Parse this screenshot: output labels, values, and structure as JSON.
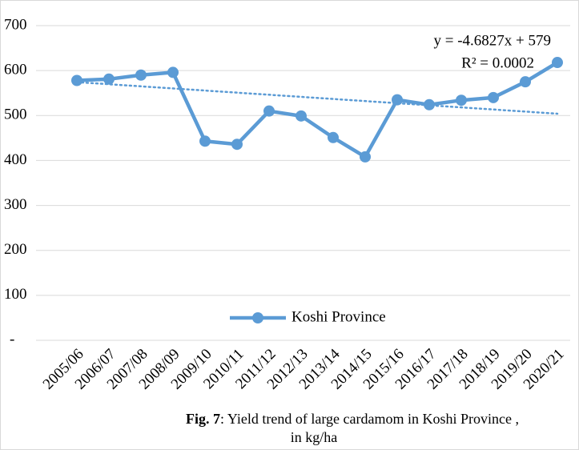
{
  "chart_data": {
    "type": "line",
    "categories": [
      "2005/06",
      "2006/07",
      "2007/08",
      "2008/09",
      "2009/10",
      "2010/11",
      "2011/12",
      "2012/13",
      "2013/14",
      "2014/15",
      "2015/16",
      "2016/17",
      "2017/18",
      "2018/19",
      "2019/20",
      "2020/21"
    ],
    "series": [
      {
        "name": "Koshi Province",
        "color": "#5b9bd5",
        "values": [
          578,
          581,
          590,
          596,
          443,
          436,
          510,
          499,
          451,
          408,
          535,
          524,
          534,
          540,
          575,
          618
        ]
      }
    ],
    "ylim": [
      0,
      700
    ],
    "yticks": [
      {
        "value": 0,
        "label": "-"
      },
      100,
      200,
      300,
      400,
      500,
      600,
      700
    ],
    "grid": true,
    "legend": "bottom",
    "trendline": {
      "label": "y = -4.6827x + 579",
      "r2_label": "R² = 0.0002",
      "slope": -4.6827,
      "intercept": 579
    },
    "caption": {
      "label": "Fig. 7",
      "text": ": Yield trend of large cardamom in Koshi Province ,",
      "text2": "in kg/ha"
    }
  }
}
